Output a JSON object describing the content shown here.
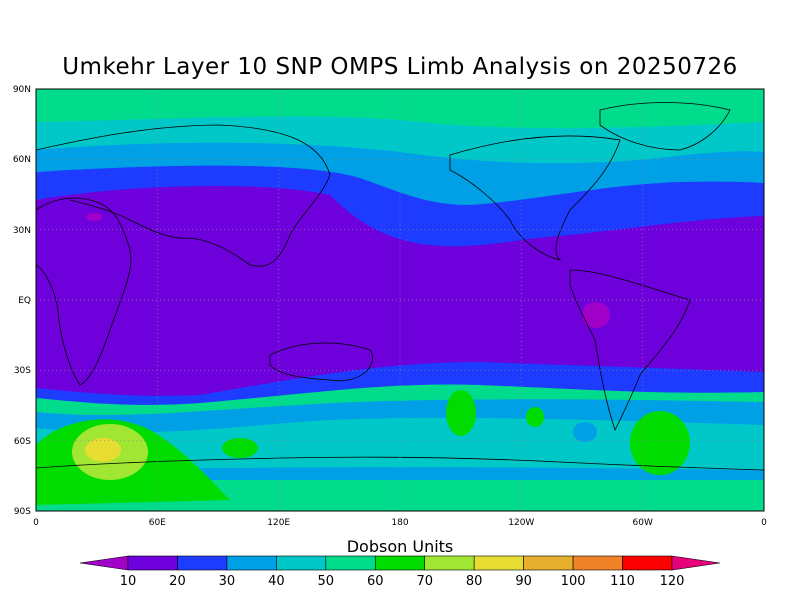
{
  "title": "Umkehr Layer 10 SNP OMPS Limb Analysis on 20250726",
  "colorbar": {
    "label": "Dobson Units",
    "ticks": [
      "10",
      "20",
      "30",
      "40",
      "50",
      "60",
      "70",
      "80",
      "90",
      "100",
      "110",
      "120"
    ],
    "colors": [
      "#a000c8",
      "#6e00dc",
      "#1e3cff",
      "#00a0e6",
      "#00c8c8",
      "#00dc8c",
      "#00dc00",
      "#a0e632",
      "#e6dc32",
      "#e6af2d",
      "#f08228",
      "#fa0000",
      "#e6007a"
    ]
  },
  "axes": {
    "y_ticks": [
      "90S",
      "60S",
      "30S",
      "EQ",
      "30N",
      "60N",
      "90N"
    ],
    "x_ticks": [
      "0",
      "60E",
      "120E",
      "180",
      "120W",
      "60W",
      "0"
    ]
  },
  "chart_data": {
    "type": "heatmap",
    "title": "Umkehr Layer 10 SNP OMPS Limb Analysis on 20250726",
    "units": "Dobson Units",
    "projection": "lon 0-360, lat 90S-90N",
    "grid": true,
    "levels": [
      10,
      20,
      30,
      40,
      50,
      60,
      70,
      80,
      90,
      100,
      110,
      120
    ],
    "features": [
      {
        "region": "high latitudes",
        "value_range": [
          50,
          60
        ]
      },
      {
        "region": "mid latitudes",
        "value_range": [
          30,
          50
        ]
      },
      {
        "region": "tropics 40S-45N",
        "value_range": [
          10,
          20
        ]
      },
      {
        "region": "southern Indian Ocean ~60S 40E",
        "value_range": [
          70,
          90
        ]
      },
      {
        "region": "southern Atlantic ~60S 45W",
        "value_range": [
          60,
          70
        ]
      },
      {
        "region": "Andes ~5S 80W",
        "value_range": [
          0,
          10
        ]
      }
    ]
  }
}
